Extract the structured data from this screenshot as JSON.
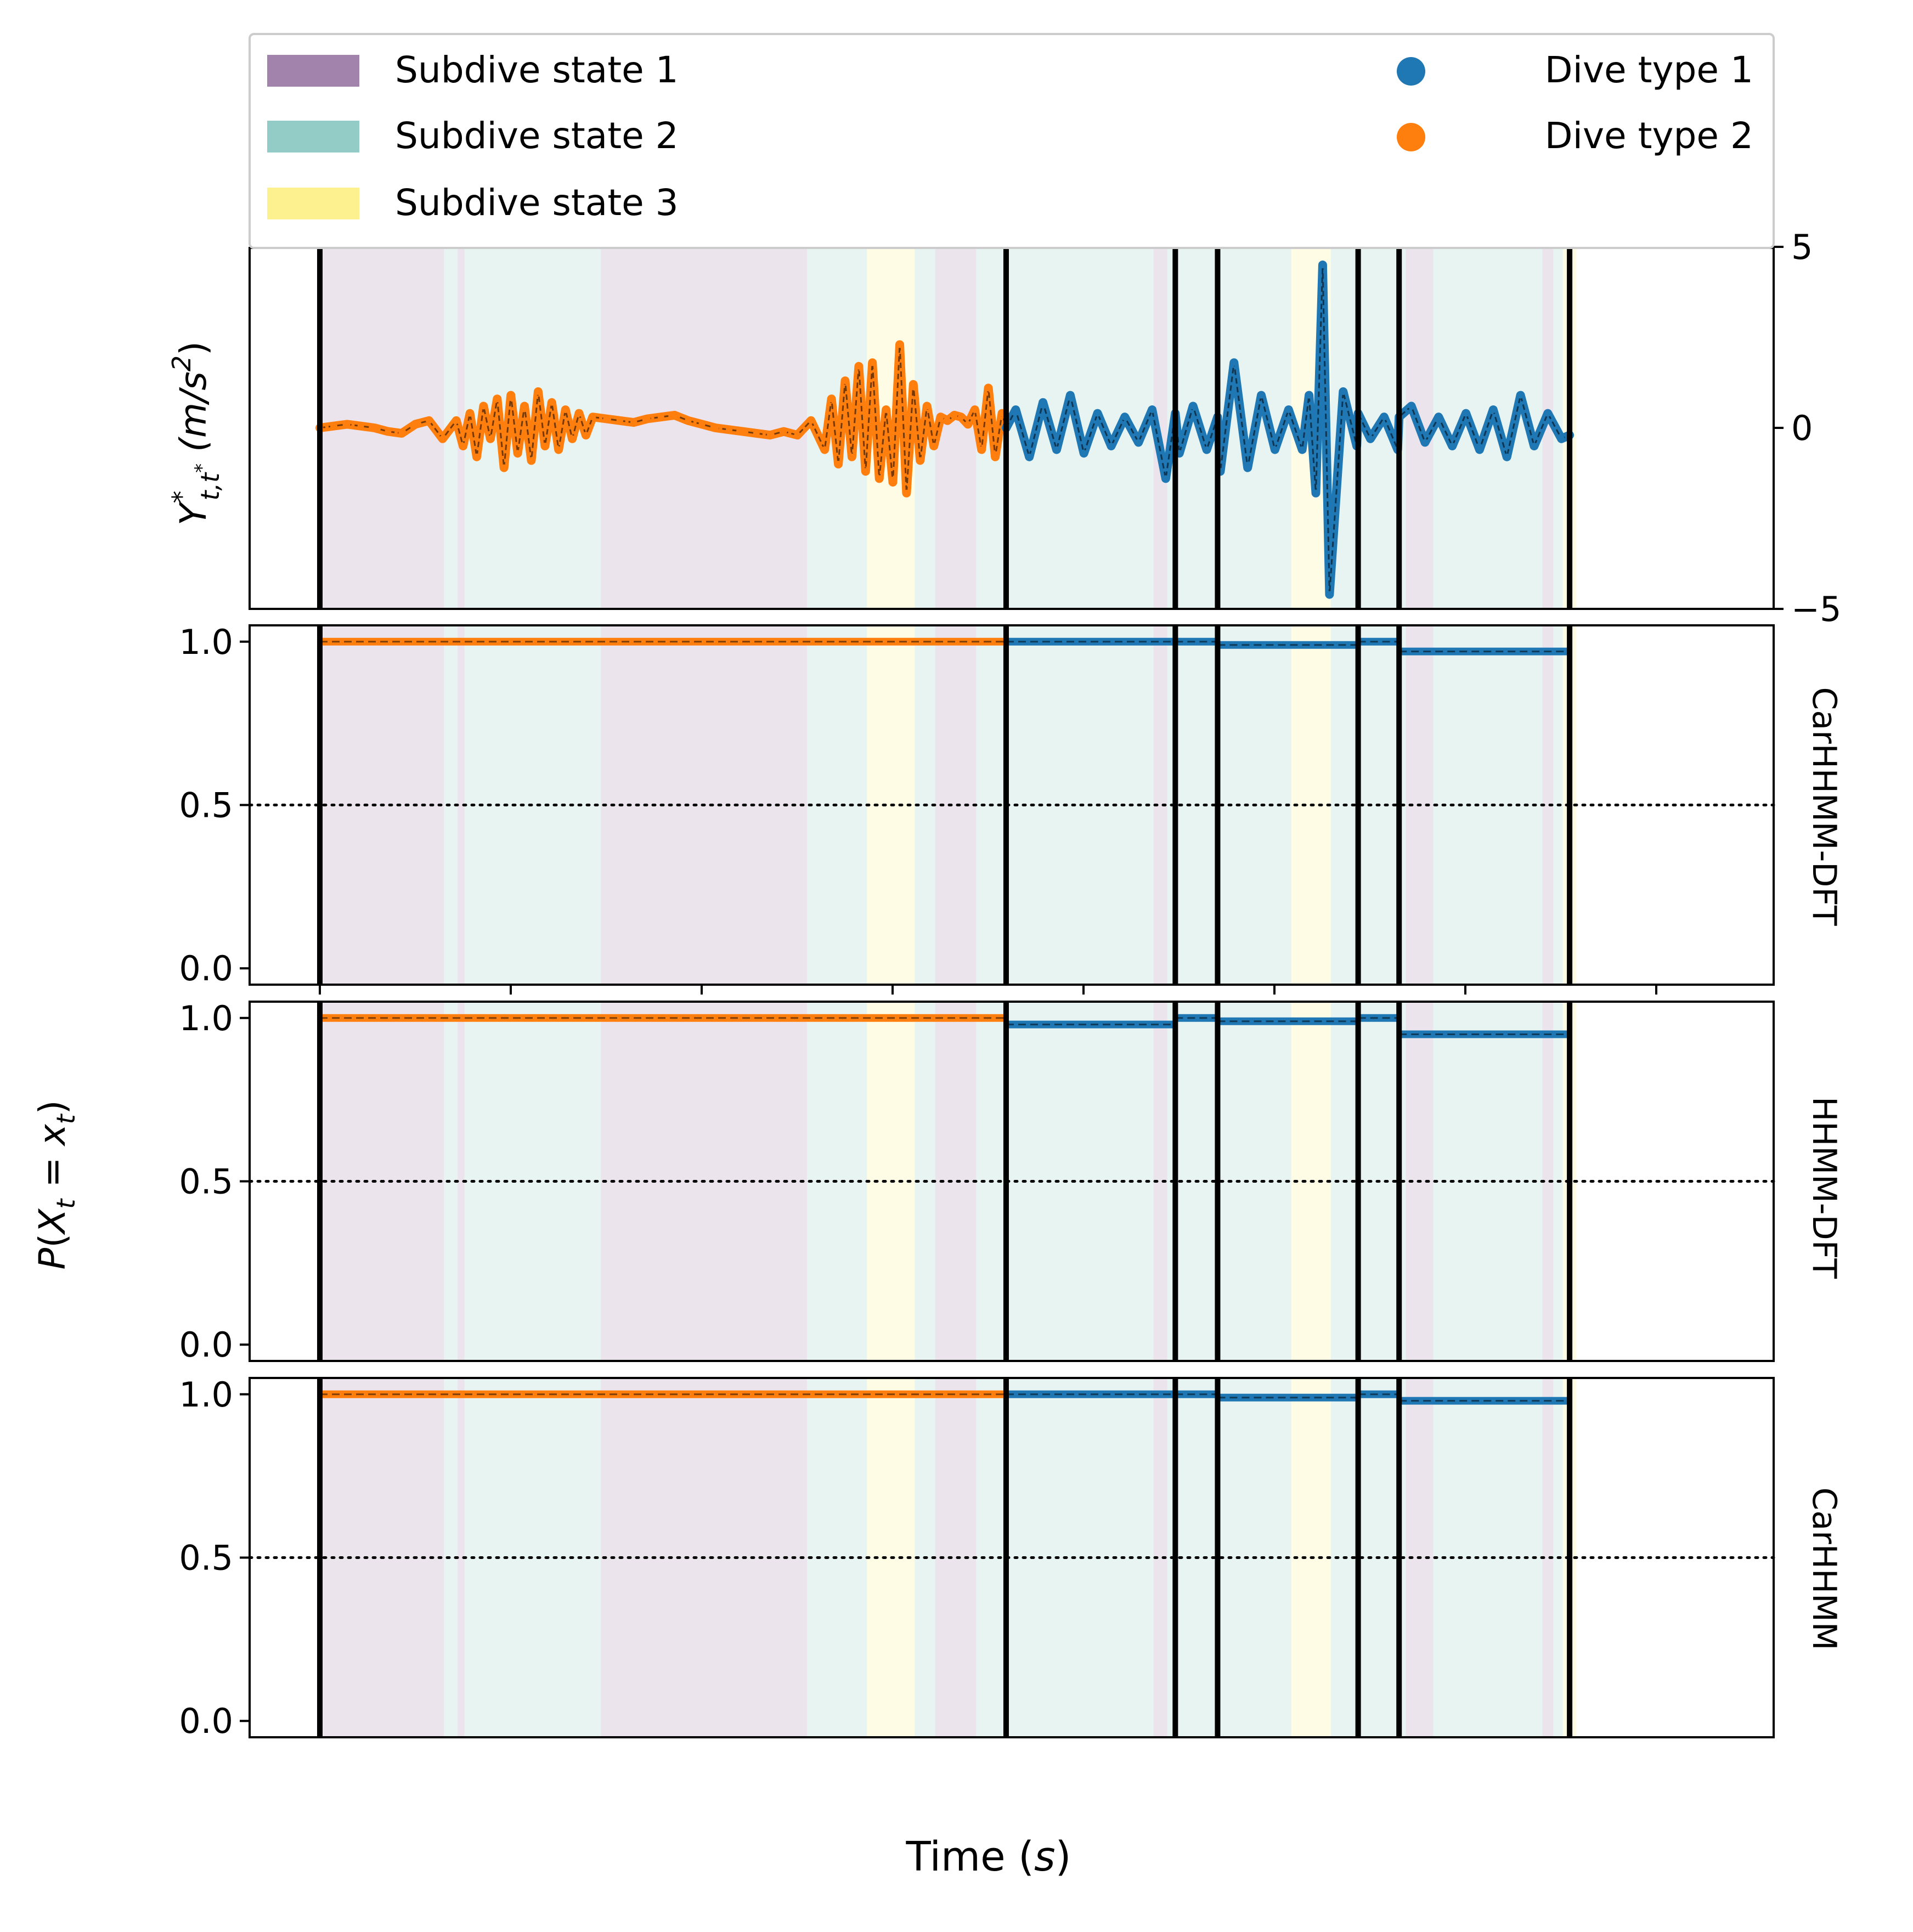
{
  "legend": {
    "subdive_items": [
      {
        "label": "Subdive state 1",
        "color": "#a283ab"
      },
      {
        "label": "Subdive state 2",
        "color": "#93cbc6"
      },
      {
        "label": "Subdive state 3",
        "color": "#fdf18f"
      }
    ],
    "dive_items": [
      {
        "label": "Dive type 1",
        "color": "#1f77b4"
      },
      {
        "label": "Dive type 2",
        "color": "#ff7f0e"
      }
    ]
  },
  "labels": {
    "top_ylabel_main": "Y",
    "top_ylabel_sup": "*",
    "top_ylabel_sub": "t,t",
    "top_ylabel_subsup": "*",
    "top_ylabel_unit": " (m/s",
    "top_ylabel_unit_sup": "2",
    "top_ylabel_close": ")",
    "prob_ylabel_p": "P",
    "prob_ylabel_open": "(",
    "prob_ylabel_x": "X",
    "prob_ylabel_sub": "t",
    "prob_ylabel_eq": " = ",
    "prob_ylabel_x2": "x",
    "prob_ylabel_sub2": "t",
    "prob_ylabel_close": ")",
    "xlabel_text": "Time (",
    "xlabel_var": "s",
    "xlabel_close": ")"
  },
  "chart_data": [
    {
      "type": "line",
      "panel": "acceleration",
      "ylim": [
        -5,
        5
      ],
      "yticks": [
        "5",
        "0",
        "−5"
      ],
      "ytick_values": [
        5,
        0,
        -5
      ],
      "ytick_side": "right",
      "x_extent": [
        0,
        100
      ],
      "dive_boundaries": [
        0,
        50.3,
        62.7,
        65.8,
        76.1,
        79.1,
        91.6
      ],
      "subdive_segments": [
        {
          "start": 0,
          "end": 9.1,
          "state": 1
        },
        {
          "start": 9.1,
          "end": 10.1,
          "state": 2
        },
        {
          "start": 10.1,
          "end": 10.6,
          "state": 1
        },
        {
          "start": 10.6,
          "end": 20.6,
          "state": 2
        },
        {
          "start": 20.6,
          "end": 35.7,
          "state": 1
        },
        {
          "start": 35.7,
          "end": 40.1,
          "state": 2
        },
        {
          "start": 40.1,
          "end": 43.6,
          "state": 3
        },
        {
          "start": 43.6,
          "end": 45.1,
          "state": 2
        },
        {
          "start": 45.1,
          "end": 48.1,
          "state": 1
        },
        {
          "start": 48.1,
          "end": 61.1,
          "state": 2
        },
        {
          "start": 61.1,
          "end": 62.1,
          "state": 1
        },
        {
          "start": 62.1,
          "end": 71.2,
          "state": 2
        },
        {
          "start": 71.2,
          "end": 74.1,
          "state": 3
        },
        {
          "start": 74.1,
          "end": 79.6,
          "state": 2
        },
        {
          "start": 79.6,
          "end": 81.6,
          "state": 1
        },
        {
          "start": 81.6,
          "end": 89.6,
          "state": 2
        },
        {
          "start": 89.6,
          "end": 90.4,
          "state": 1
        },
        {
          "start": 90.4,
          "end": 91.1,
          "state": 2
        },
        {
          "start": 91.1,
          "end": 92.1,
          "state": 3
        }
      ],
      "series": [
        {
          "dive_type": 2,
          "color": "#ff7f0e",
          "x": [
            0,
            1,
            2,
            3,
            4,
            5,
            6,
            7,
            8,
            9,
            10,
            10.5,
            11,
            11.5,
            12,
            12.5,
            13,
            13.5,
            14,
            14.5,
            15,
            15.5,
            16,
            16.5,
            17,
            17.5,
            18,
            18.5,
            19,
            19.5,
            20,
            21,
            22,
            23,
            24,
            25,
            26,
            27,
            28,
            29,
            30,
            31,
            32,
            33,
            34,
            35,
            36,
            37,
            37.5,
            38,
            38.5,
            39,
            39.5,
            40,
            40.5,
            41,
            41.5,
            42,
            42.5,
            43,
            43.5,
            44,
            44.5,
            45,
            45.5,
            46,
            46.5,
            47,
            47.5,
            48,
            48.5,
            49,
            49.5,
            50,
            50.3
          ],
          "y": [
            0,
            0.05,
            0.1,
            0.05,
            0,
            -0.1,
            -0.15,
            0.1,
            0.2,
            -0.3,
            0.2,
            -0.5,
            0.4,
            -0.8,
            0.6,
            -0.3,
            0.8,
            -1.1,
            0.9,
            -0.7,
            0.6,
            -0.9,
            1.0,
            -0.5,
            0.7,
            -0.6,
            0.5,
            -0.3,
            0.4,
            -0.2,
            0.3,
            0.25,
            0.2,
            0.15,
            0.25,
            0.3,
            0.35,
            0.2,
            0.1,
            0.0,
            -0.05,
            -0.1,
            -0.15,
            -0.2,
            -0.1,
            -0.2,
            0.2,
            -0.6,
            0.8,
            -1.0,
            1.3,
            -0.8,
            1.7,
            -1.2,
            1.8,
            -1.4,
            0.5,
            -1.5,
            2.3,
            -1.8,
            1.2,
            -0.9,
            0.6,
            -0.5,
            0.3,
            0.2,
            0.35,
            0.3,
            0.1,
            0.5,
            -0.6,
            1.1,
            -0.8,
            0.4,
            0.0
          ]
        },
        {
          "dive_type": 1,
          "color": "#1f77b4",
          "x": [
            50.3,
            51,
            52,
            53,
            54,
            55,
            56,
            57,
            58,
            59,
            60,
            61,
            62,
            62.7,
            63,
            64,
            65,
            65.8,
            66,
            67,
            68,
            69,
            70,
            71,
            72,
            72.5,
            73,
            73.5,
            74,
            75,
            76,
            76.1,
            77,
            78,
            79,
            79.1,
            80,
            81,
            82,
            83,
            84,
            85,
            86,
            87,
            88,
            89,
            90,
            91,
            91.6
          ],
          "y": [
            0.0,
            0.5,
            -0.8,
            0.7,
            -0.6,
            0.9,
            -0.7,
            0.4,
            -0.5,
            0.3,
            -0.4,
            0.5,
            -1.4,
            0.4,
            -0.7,
            0.6,
            -0.6,
            0.3,
            -1.2,
            1.8,
            -1.1,
            0.9,
            -0.6,
            0.5,
            -0.6,
            0.9,
            -1.8,
            4.5,
            -4.6,
            1.0,
            -0.5,
            0.4,
            -0.3,
            0.3,
            -0.6,
            0.3,
            0.6,
            -0.4,
            0.3,
            -0.5,
            0.4,
            -0.6,
            0.5,
            -0.8,
            0.9,
            -0.5,
            0.4,
            -0.3,
            -0.2
          ]
        }
      ]
    },
    {
      "type": "line",
      "panel": "probability",
      "model": "CarHHMM-DFT",
      "ylim": [
        -0.05,
        1.05
      ],
      "yticks": [
        "0.0",
        "0.5",
        "1.0"
      ],
      "ytick_values": [
        0,
        0.5,
        1
      ],
      "reference_line": 0.5,
      "segments": [
        {
          "start": 0,
          "end": 50.3,
          "value": 1.0,
          "dive_type": 2
        },
        {
          "start": 50.3,
          "end": 62.7,
          "value": 1.0,
          "dive_type": 1
        },
        {
          "start": 62.7,
          "end": 65.8,
          "value": 1.0,
          "dive_type": 1
        },
        {
          "start": 65.8,
          "end": 76.1,
          "value": 0.99,
          "dive_type": 1
        },
        {
          "start": 76.1,
          "end": 79.1,
          "value": 1.0,
          "dive_type": 1
        },
        {
          "start": 79.1,
          "end": 91.6,
          "value": 0.97,
          "dive_type": 1
        }
      ]
    },
    {
      "type": "line",
      "panel": "probability",
      "model": "HHMM-DFT",
      "ylim": [
        -0.05,
        1.05
      ],
      "yticks": [
        "0.0",
        "0.5",
        "1.0"
      ],
      "ytick_values": [
        0,
        0.5,
        1
      ],
      "reference_line": 0.5,
      "segments": [
        {
          "start": 0,
          "end": 50.3,
          "value": 1.0,
          "dive_type": 2
        },
        {
          "start": 50.3,
          "end": 62.7,
          "value": 0.98,
          "dive_type": 1
        },
        {
          "start": 62.7,
          "end": 65.8,
          "value": 1.0,
          "dive_type": 1
        },
        {
          "start": 65.8,
          "end": 76.1,
          "value": 0.99,
          "dive_type": 1
        },
        {
          "start": 76.1,
          "end": 79.1,
          "value": 1.0,
          "dive_type": 1
        },
        {
          "start": 79.1,
          "end": 91.6,
          "value": 0.95,
          "dive_type": 1
        }
      ]
    },
    {
      "type": "line",
      "panel": "probability",
      "model": "CarHHMM",
      "ylim": [
        -0.05,
        1.05
      ],
      "yticks": [
        "0.0",
        "0.5",
        "1.0"
      ],
      "ytick_values": [
        0,
        0.5,
        1
      ],
      "reference_line": 0.5,
      "segments": [
        {
          "start": 0,
          "end": 50.3,
          "value": 1.0,
          "dive_type": 2
        },
        {
          "start": 50.3,
          "end": 62.7,
          "value": 1.0,
          "dive_type": 1
        },
        {
          "start": 62.7,
          "end": 65.8,
          "value": 1.0,
          "dive_type": 1
        },
        {
          "start": 65.8,
          "end": 76.1,
          "value": 0.99,
          "dive_type": 1
        },
        {
          "start": 76.1,
          "end": 79.1,
          "value": 1.0,
          "dive_type": 1
        },
        {
          "start": 79.1,
          "end": 91.6,
          "value": 0.98,
          "dive_type": 1
        }
      ]
    }
  ]
}
